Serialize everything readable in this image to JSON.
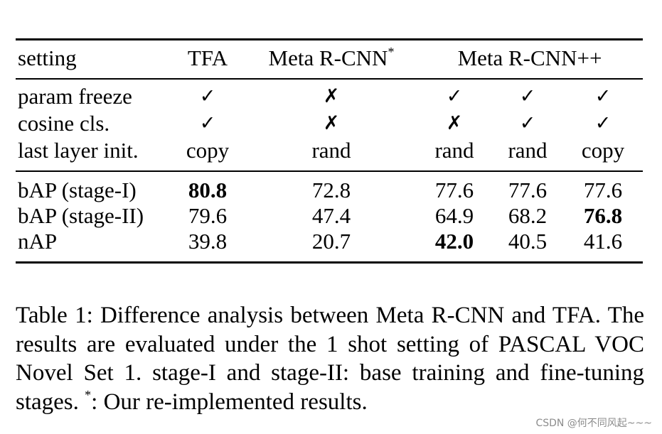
{
  "table": {
    "header": {
      "setting": "setting",
      "tfa": "TFA",
      "meta_rcnn": "Meta R-CNN",
      "meta_rcnn_sup": "*",
      "meta_rcnn_pp": "Meta R-CNN++"
    },
    "config_rows": [
      {
        "label": "param freeze",
        "cells": [
          "✓",
          "✗",
          "✓",
          "✓",
          "✓"
        ]
      },
      {
        "label": "cosine cls.",
        "cells": [
          "✓",
          "✗",
          "✗",
          "✓",
          "✓"
        ]
      },
      {
        "label": "last layer init.",
        "cells": [
          "copy",
          "rand",
          "rand",
          "rand",
          "copy"
        ]
      }
    ],
    "result_rows": [
      {
        "label": "bAP (stage-I)",
        "cells": [
          "80.8",
          "72.8",
          "77.6",
          "77.6",
          "77.6"
        ],
        "bold_index": 0
      },
      {
        "label": "bAP (stage-II)",
        "cells": [
          "79.6",
          "47.4",
          "64.9",
          "68.2",
          "76.8"
        ],
        "bold_index": 4
      },
      {
        "label": "nAP",
        "cells": [
          "39.8",
          "20.7",
          "42.0",
          "40.5",
          "41.6"
        ],
        "bold_index": 2
      }
    ]
  },
  "caption": {
    "part1": "Table 1: Difference analysis between Meta R-CNN and TFA. The results are evaluated under the 1 shot setting of PASCAL VOC Novel Set 1. stage-I and stage-II: base training and fine-tuning stages. ",
    "sup": "*",
    "part2": ": Our re-implemented results."
  },
  "watermark": "CSDN @何不同风起~~~"
}
